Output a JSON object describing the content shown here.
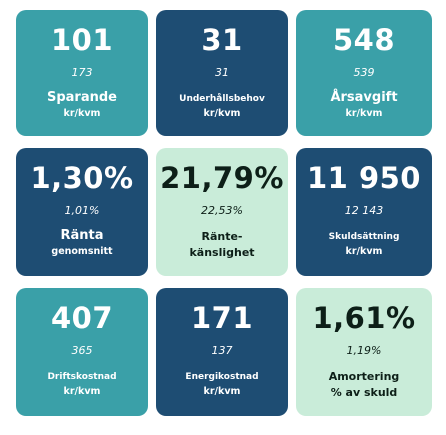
{
  "tiles": [
    {
      "value": "101",
      "previous": "173",
      "label": "Sparande",
      "sublabel": "kr/kvm"
    },
    {
      "value": "31",
      "previous": "31",
      "label": "Underhållsbehov",
      "sublabel": "kr/kvm"
    },
    {
      "value": "548",
      "previous": "539",
      "label": "Årsavgift",
      "sublabel": "kr/kvm"
    },
    {
      "value": "1,30%",
      "previous": "1,01%",
      "label": "Ränta",
      "sublabel": "genomsnitt"
    },
    {
      "value": "21,79%",
      "previous": "22,53%",
      "label": "Ränte-",
      "sublabel": "känslighet"
    },
    {
      "value": "11 950",
      "previous": "12 143",
      "label": "Skuldsättning",
      "sublabel": "kr/kvm"
    },
    {
      "value": "407",
      "previous": "365",
      "label": "Driftskostnad",
      "sublabel": "kr/kvm"
    },
    {
      "value": "171",
      "previous": "137",
      "label": "Energikostnad",
      "sublabel": "kr/kvm"
    },
    {
      "value": "1,61%",
      "previous": "1,19%",
      "label": "Amortering",
      "sublabel": "% av skuld"
    }
  ],
  "colors": {
    "teal": "#3aa0a8",
    "navy": "#1e4d73",
    "mint": "#c9ecd9"
  }
}
